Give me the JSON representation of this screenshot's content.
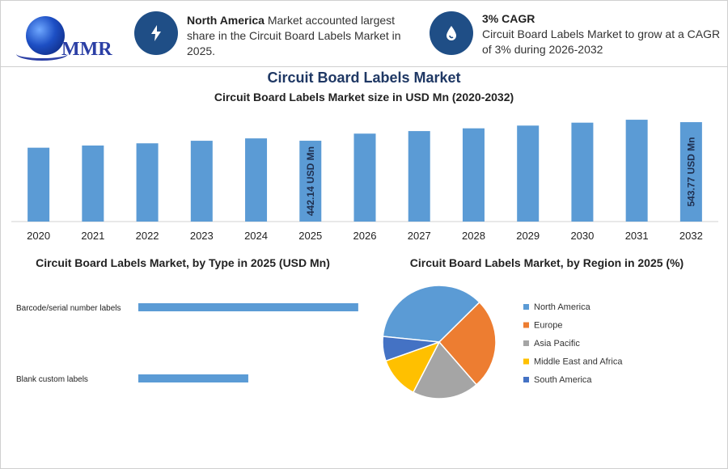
{
  "logo": {
    "text": "MMR"
  },
  "info1": {
    "bold": "North America",
    "text": " Market accounted largest share in the Circuit Board Labels Market in 2025."
  },
  "info2": {
    "title": "3% CAGR",
    "text": "Circuit Board Labels Market to grow at a CAGR of 3% during 2026-2032"
  },
  "header": {
    "title": "Circuit Board Labels Market"
  },
  "colors": {
    "bar": "#5b9bd5",
    "accent": "#1f4e86"
  },
  "chart_data": [
    {
      "type": "bar",
      "title": "Circuit Board Labels Market size in USD Mn (2020-2032)",
      "categories": [
        "2020",
        "2021",
        "2022",
        "2023",
        "2024",
        "2025",
        "2026",
        "2027",
        "2028",
        "2029",
        "2030",
        "2031",
        "2032"
      ],
      "values": [
        404,
        416,
        428,
        442,
        455,
        442.14,
        481,
        495,
        510,
        525,
        541,
        557,
        543.77
      ],
      "ylim": [
        0,
        575
      ],
      "annotations": [
        {
          "category": "2025",
          "label": "442.14 USD Mn"
        },
        {
          "category": "2032",
          "label": "543.77 USD Mn"
        }
      ]
    },
    {
      "type": "bar",
      "orientation": "horizontal",
      "title": "Circuit Board Labels Market, by Type in 2025 (USD Mn)",
      "categories": [
        "Barcode/serial number labels",
        "Blank custom labels"
      ],
      "values": [
        300,
        150
      ],
      "xlim": [
        0,
        320
      ]
    },
    {
      "type": "pie",
      "title": "Circuit Board Labels Market, by Region in 2025 (%)",
      "labels": [
        "North America",
        "Europe",
        "Asia Pacific",
        "Middle East and Africa",
        "South America"
      ],
      "values": [
        36,
        26,
        19,
        12,
        7
      ],
      "colors": [
        "#5b9bd5",
        "#ed7d31",
        "#a5a5a5",
        "#ffc000",
        "#4472c4"
      ]
    }
  ]
}
